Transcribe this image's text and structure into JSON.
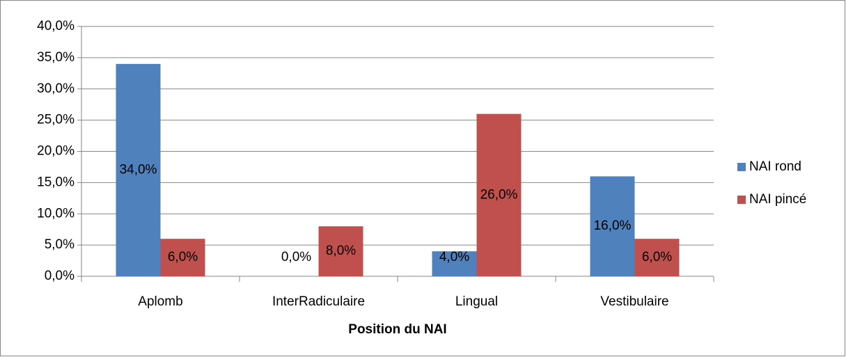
{
  "chart_data": {
    "type": "bar",
    "x_label": "Position du NAI",
    "categories": [
      "Aplomb",
      "InterRadiculaire",
      "Lingual",
      "Vestibulaire"
    ],
    "series": [
      {
        "name": "NAI rond",
        "color": "#4f81bd",
        "values": [
          34,
          0,
          4,
          16
        ],
        "value_labels": [
          "34,0%",
          "0,0%",
          "4,0%",
          "16,0%"
        ]
      },
      {
        "name": "NAI pincé",
        "color": "#c0504d",
        "values": [
          6,
          8,
          26,
          6
        ],
        "value_labels": [
          "6,0%",
          "8,0%",
          "26,0%",
          "6,0%"
        ]
      }
    ],
    "ylim": [
      0,
      40
    ],
    "yticks": [
      {
        "value": 0,
        "label": "0,0%"
      },
      {
        "value": 5,
        "label": "5,0%"
      },
      {
        "value": 10,
        "label": "10,0%"
      },
      {
        "value": 15,
        "label": "15,0%"
      },
      {
        "value": 20,
        "label": "20,0%"
      },
      {
        "value": 25,
        "label": "25,0%"
      },
      {
        "value": 30,
        "label": "30,0%"
      },
      {
        "value": 35,
        "label": "35,0%"
      },
      {
        "value": 40,
        "label": "40,0%"
      }
    ],
    "grid": true,
    "legend": "right"
  }
}
